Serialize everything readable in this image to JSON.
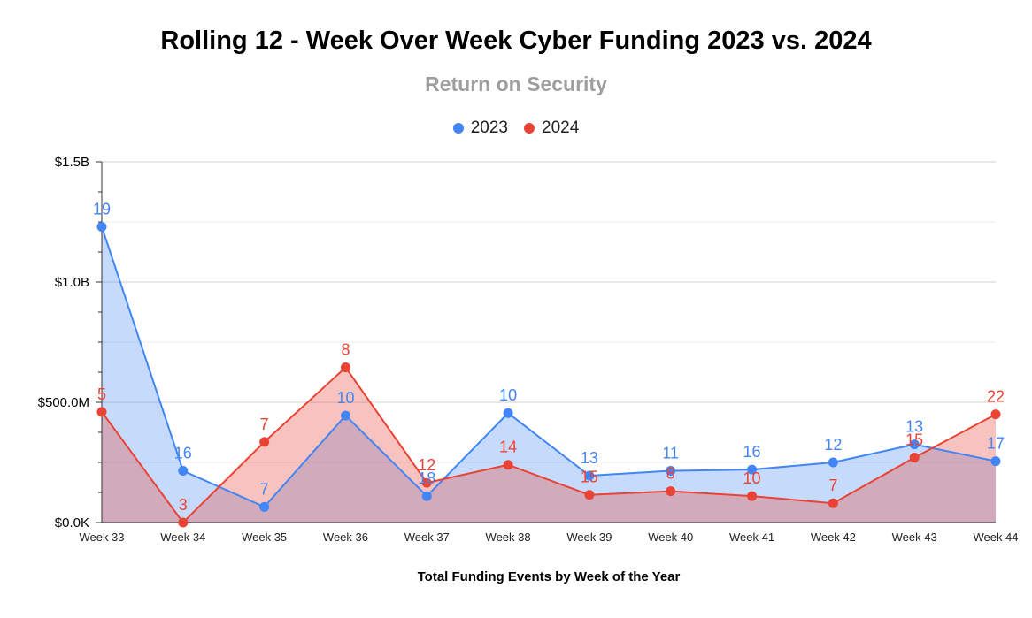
{
  "chart_data": {
    "type": "area",
    "title": "Rolling 12 - Week Over Week Cyber Funding 2023 vs. 2024",
    "subtitle": "Return on Security",
    "xlabel": "Total Funding Events by Week of the Year",
    "ylabel": "",
    "categories": [
      "Week 33",
      "Week 34",
      "Week 35",
      "Week 36",
      "Week 37",
      "Week 38",
      "Week 39",
      "Week 40",
      "Week 41",
      "Week 42",
      "Week 43",
      "Week 44"
    ],
    "ylim": [
      0,
      1500000000
    ],
    "y_ticks": [
      {
        "value": 0,
        "label": "$0.0K"
      },
      {
        "value": 500000000,
        "label": "$500.0M"
      },
      {
        "value": 1000000000,
        "label": "$1.0B"
      },
      {
        "value": 1500000000,
        "label": "$1.5B"
      }
    ],
    "grid": true,
    "legend_position": "top",
    "series": [
      {
        "name": "2023",
        "color": "#4285f4",
        "fill": "rgba(66,133,244,0.30)",
        "values": [
          1230000000,
          215000000,
          65000000,
          445000000,
          110000000,
          455000000,
          195000000,
          215000000,
          220000000,
          250000000,
          325000000,
          255000000
        ],
        "labels": [
          "19",
          "16",
          "7",
          "10",
          "18",
          "10",
          "13",
          "11",
          "16",
          "12",
          "13",
          "17"
        ]
      },
      {
        "name": "2024",
        "color": "#ea4335",
        "fill": "rgba(234,67,53,0.32)",
        "values": [
          460000000,
          0,
          335000000,
          645000000,
          165000000,
          240000000,
          115000000,
          130000000,
          110000000,
          80000000,
          270000000,
          450000000
        ],
        "labels": [
          "5",
          "3",
          "7",
          "8",
          "12",
          "14",
          "15",
          "8",
          "10",
          "7",
          "15",
          "22"
        ]
      }
    ]
  }
}
